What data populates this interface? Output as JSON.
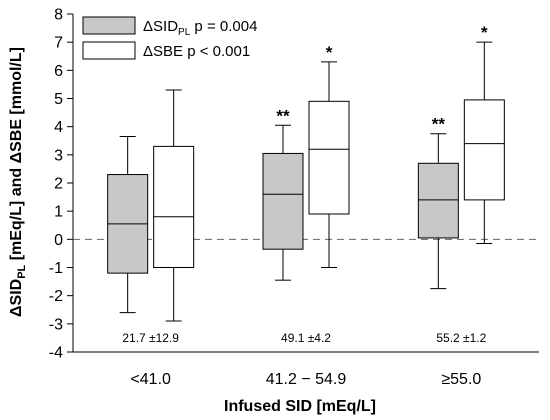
{
  "chart_data": {
    "type": "boxplot",
    "ylabel": {
      "prefix": "ΔSID",
      "sub": "PL",
      "suffix": " [mEq/L] and ΔSBE [mmol/L]"
    },
    "xlabel": "Infused SID [mEq/L]",
    "ylim": [
      -4,
      8
    ],
    "yticks": [
      -4,
      -3,
      -2,
      -1,
      0,
      1,
      2,
      3,
      4,
      5,
      6,
      7,
      8
    ],
    "reference_line": {
      "y": 0,
      "style": "dashed"
    },
    "categories": [
      "<41.0",
      "41.2 − 54.9",
      "≥55.0"
    ],
    "group_annotations": [
      "21.7 ±12.9",
      "49.1 ±4.2",
      "55.2 ±1.2"
    ],
    "legend": {
      "position": "top-left",
      "entries": [
        {
          "label_prefix": "ΔSID",
          "label_sub": "PL",
          "label_suffix": " p = 0.004"
        },
        {
          "label_prefix": "ΔSBE",
          "label_sub": "",
          "label_suffix": "  p < 0.001"
        }
      ]
    },
    "series": [
      {
        "name": "ΔSID_PL",
        "fill": "#c8c8c8",
        "boxes": [
          {
            "whisker_low": -2.6,
            "q1": -1.2,
            "median": 0.55,
            "q3": 2.3,
            "whisker_high": 3.65,
            "marker": ""
          },
          {
            "whisker_low": -1.45,
            "q1": -0.35,
            "median": 1.6,
            "q3": 3.05,
            "whisker_high": 4.05,
            "marker": "**"
          },
          {
            "whisker_low": -1.75,
            "q1": 0.05,
            "median": 1.4,
            "q3": 2.7,
            "whisker_high": 3.75,
            "marker": "**"
          }
        ]
      },
      {
        "name": "ΔSBE",
        "fill": "#ffffff",
        "boxes": [
          {
            "whisker_low": -2.9,
            "q1": -1.0,
            "median": 0.8,
            "q3": 3.3,
            "whisker_high": 5.3,
            "marker": ""
          },
          {
            "whisker_low": -1.0,
            "q1": 0.9,
            "median": 3.2,
            "q3": 4.9,
            "whisker_high": 6.3,
            "marker": "*"
          },
          {
            "whisker_low": -0.15,
            "q1": 1.4,
            "median": 3.4,
            "q3": 4.95,
            "whisker_high": 7.0,
            "marker": "*"
          }
        ]
      }
    ]
  }
}
